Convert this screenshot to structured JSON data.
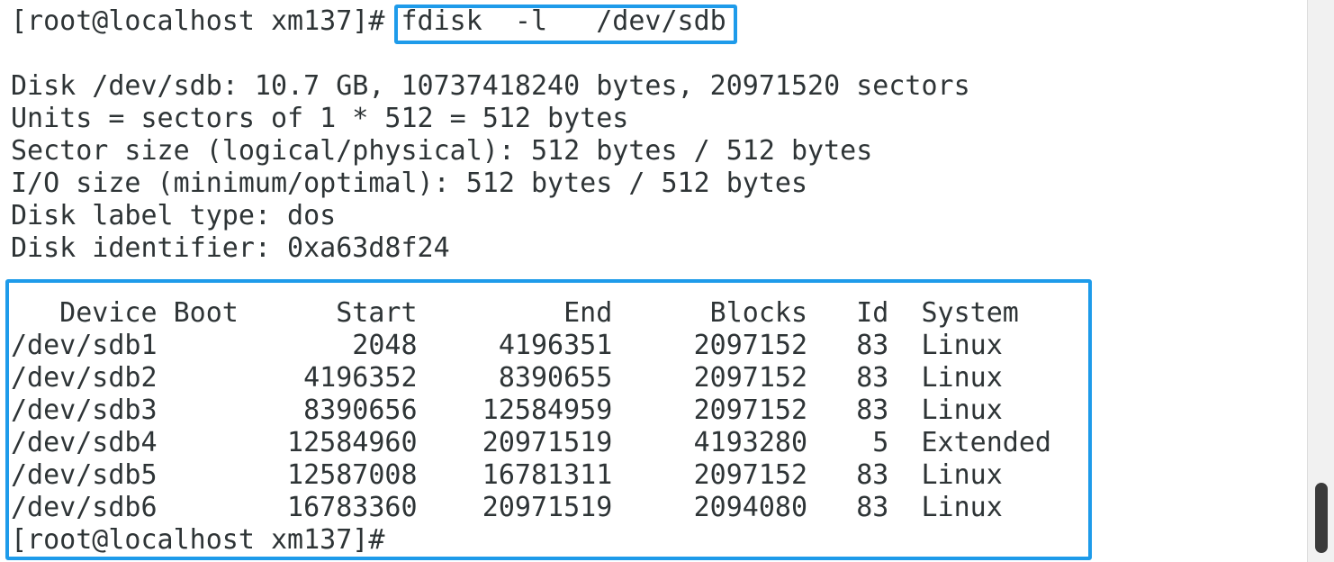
{
  "prompt": "[root@localhost xm137]# ",
  "command": "fdisk  -l   /dev/sdb",
  "disk_info": [
    "Disk /dev/sdb: 10.7 GB, 10737418240 bytes, 20971520 sectors",
    "Units = sectors of 1 * 512 = 512 bytes",
    "Sector size (logical/physical): 512 bytes / 512 bytes",
    "I/O size (minimum/optimal): 512 bytes / 512 bytes",
    "Disk label type: dos",
    "Disk identifier: 0xa63d8f24"
  ],
  "table": {
    "header": "   Device Boot      Start         End      Blocks   Id  System",
    "rows": [
      "/dev/sdb1            2048     4196351     2097152   83  Linux",
      "/dev/sdb2         4196352     8390655     2097152   83  Linux",
      "/dev/sdb3         8390656    12584959     2097152   83  Linux",
      "/dev/sdb4        12584960    20971519     4193280    5  Extended",
      "/dev/sdb5        12587008    16781311     2097152   83  Linux",
      "/dev/sdb6        16783360    20971519     2094080   83  Linux"
    ]
  },
  "final_prompt": "[root@localhost xm137]#"
}
